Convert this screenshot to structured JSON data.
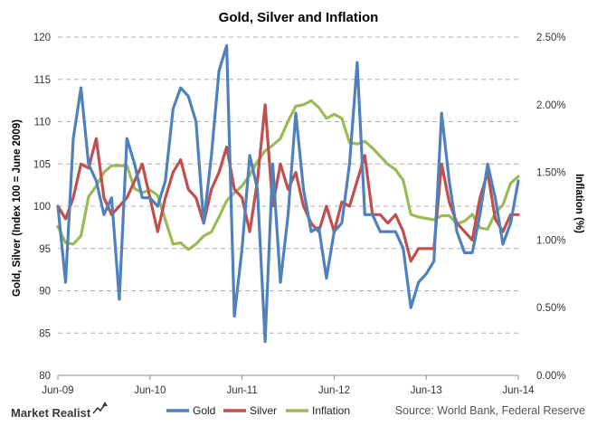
{
  "chart_data": {
    "type": "line",
    "title": "Gold, Silver and Inflation",
    "ylabel": "Gold, Silver (Index 100 = June 2009)",
    "y2label": "Inflation (%)",
    "ylim": [
      80,
      120
    ],
    "y2lim": [
      0.0,
      2.5
    ],
    "yticks": [
      "80",
      "85",
      "90",
      "95",
      "100",
      "105",
      "110",
      "115",
      "120"
    ],
    "y2ticks": [
      "0.00%",
      "0.50%",
      "1.00%",
      "1.50%",
      "2.00%",
      "2.50%"
    ],
    "xticks": [
      "Jun-09",
      "Jun-10",
      "Jun-11",
      "Jun-12",
      "Jun-13",
      "Jun-14"
    ],
    "x_range_months": [
      0,
      60
    ],
    "grid": true,
    "legend_position": "bottom",
    "series": [
      {
        "name": "Gold",
        "axis": "left",
        "color": "#4f81bd",
        "values": [
          100,
          91,
          108,
          114,
          105,
          103,
          99,
          101,
          89,
          108,
          105,
          101,
          101,
          100,
          103,
          111.5,
          114,
          113,
          110,
          98,
          106,
          116,
          119,
          87,
          95,
          106,
          102,
          84,
          105,
          91,
          99,
          111,
          102,
          97,
          97.5,
          91.5,
          97,
          98,
          105,
          117,
          99,
          99,
          97,
          97,
          97,
          95,
          88,
          91,
          92,
          93.5,
          111,
          103,
          97,
          94.5,
          94.5,
          99,
          105,
          101,
          95.5,
          98,
          103
        ]
      },
      {
        "name": "Silver",
        "axis": "left",
        "color": "#c0504d",
        "values": [
          100,
          98.5,
          101,
          105,
          104.5,
          108,
          101,
          99,
          100,
          101,
          103,
          105,
          101,
          97,
          101,
          104,
          105.5,
          102,
          101,
          98,
          102,
          104,
          107,
          102,
          101,
          97,
          103,
          112,
          100,
          105,
          102,
          104,
          100,
          98,
          97,
          100,
          97,
          100.5,
          100,
          103,
          106,
          99,
          99,
          98,
          99,
          97,
          93.5,
          95,
          95,
          95,
          105,
          100.5,
          98,
          97,
          96,
          101,
          104,
          98.5,
          97,
          99,
          99
        ]
      },
      {
        "name": "Inflation",
        "axis": "right",
        "color": "#9bbb59",
        "values": [
          1.1,
          0.98,
          0.97,
          1.03,
          1.32,
          1.4,
          1.5,
          1.55,
          1.55,
          1.55,
          1.38,
          1.35,
          1.37,
          1.33,
          1.15,
          0.97,
          0.98,
          0.93,
          0.97,
          1.03,
          1.06,
          1.17,
          1.29,
          1.35,
          1.4,
          1.48,
          1.58,
          1.66,
          1.7,
          1.75,
          1.88,
          1.99,
          2.0,
          2.03,
          1.98,
          1.9,
          1.93,
          1.9,
          1.72,
          1.71,
          1.73,
          1.68,
          1.62,
          1.56,
          1.52,
          1.44,
          1.19,
          1.17,
          1.16,
          1.15,
          1.18,
          1.18,
          1.12,
          1.14,
          1.19,
          1.09,
          1.08,
          1.2,
          1.26,
          1.42,
          1.47
        ]
      }
    ]
  },
  "footer": {
    "brand": "Market Realist",
    "source": "Source: World Bank, Federal Reserve"
  },
  "colors": {
    "gold": "#4f81bd",
    "silver": "#c0504d",
    "inflation": "#9bbb59"
  },
  "icons": [
    "market-realist-logo-icon"
  ]
}
